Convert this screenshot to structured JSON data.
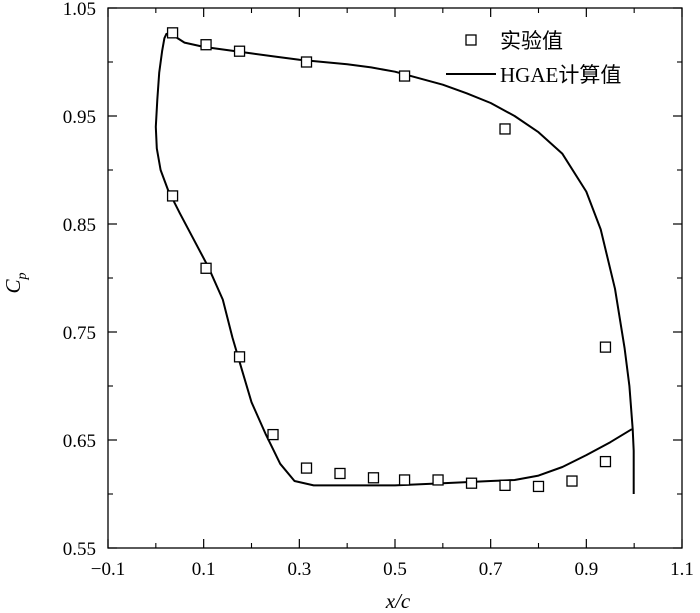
{
  "chart_data": {
    "type": "scatter",
    "xlabel": "x/c",
    "ylabel_main": "C",
    "ylabel_sub": "p",
    "xlim": [
      -0.1,
      1.1
    ],
    "ylim": [
      0.55,
      1.05
    ],
    "xticks": [
      -0.1,
      0.1,
      0.3,
      0.5,
      0.7,
      0.9,
      1.1
    ],
    "xtick_labels": [
      "−0.1",
      "0.1",
      "0.3",
      "0.5",
      "0.7",
      "0.9",
      "1.1"
    ],
    "yticks": [
      0.55,
      0.65,
      0.75,
      0.85,
      0.95,
      1.05
    ],
    "ytick_labels": [
      "0.55",
      "0.65",
      "0.75",
      "0.85",
      "0.95",
      "1.05"
    ],
    "grid": false,
    "legend_position": "top-right",
    "series": [
      {
        "name": "实验值",
        "style": "open-square-markers",
        "color": "#000000",
        "points": [
          [
            0.035,
            1.027
          ],
          [
            0.105,
            1.016
          ],
          [
            0.175,
            1.01
          ],
          [
            0.315,
            1.0
          ],
          [
            0.52,
            0.987
          ],
          [
            0.73,
            0.938
          ],
          [
            0.94,
            0.736
          ],
          [
            0.035,
            0.876
          ],
          [
            0.105,
            0.809
          ],
          [
            0.175,
            0.727
          ],
          [
            0.245,
            0.655
          ],
          [
            0.315,
            0.624
          ],
          [
            0.385,
            0.619
          ],
          [
            0.455,
            0.615
          ],
          [
            0.52,
            0.613
          ],
          [
            0.59,
            0.613
          ],
          [
            0.66,
            0.61
          ],
          [
            0.73,
            0.608
          ],
          [
            0.8,
            0.607
          ],
          [
            0.87,
            0.612
          ],
          [
            0.94,
            0.63
          ]
        ]
      },
      {
        "name": "HGAE计算值",
        "style": "solid-line",
        "color": "#000000",
        "points": [
          [
            0.999,
            0.6
          ],
          [
            0.999,
            0.64
          ],
          [
            0.997,
            0.66
          ],
          [
            0.99,
            0.7
          ],
          [
            0.98,
            0.735
          ],
          [
            0.96,
            0.79
          ],
          [
            0.93,
            0.845
          ],
          [
            0.9,
            0.88
          ],
          [
            0.85,
            0.915
          ],
          [
            0.8,
            0.935
          ],
          [
            0.75,
            0.95
          ],
          [
            0.7,
            0.962
          ],
          [
            0.65,
            0.971
          ],
          [
            0.6,
            0.979
          ],
          [
            0.55,
            0.985
          ],
          [
            0.5,
            0.991
          ],
          [
            0.45,
            0.995
          ],
          [
            0.4,
            0.998
          ],
          [
            0.35,
            1.0
          ],
          [
            0.3,
            1.002
          ],
          [
            0.25,
            1.005
          ],
          [
            0.2,
            1.008
          ],
          [
            0.15,
            1.011
          ],
          [
            0.1,
            1.014
          ],
          [
            0.06,
            1.018
          ],
          [
            0.035,
            1.025
          ],
          [
            0.022,
            1.026
          ],
          [
            0.018,
            1.022
          ],
          [
            0.013,
            1.01
          ],
          [
            0.007,
            0.99
          ],
          [
            0.003,
            0.965
          ],
          [
            0.0,
            0.94
          ],
          [
            0.002,
            0.92
          ],
          [
            0.01,
            0.9
          ],
          [
            0.025,
            0.882
          ],
          [
            0.05,
            0.86
          ],
          [
            0.08,
            0.835
          ],
          [
            0.11,
            0.81
          ],
          [
            0.14,
            0.78
          ],
          [
            0.16,
            0.745
          ],
          [
            0.18,
            0.715
          ],
          [
            0.2,
            0.685
          ],
          [
            0.23,
            0.655
          ],
          [
            0.26,
            0.628
          ],
          [
            0.29,
            0.612
          ],
          [
            0.33,
            0.608
          ],
          [
            0.4,
            0.608
          ],
          [
            0.5,
            0.608
          ],
          [
            0.6,
            0.61
          ],
          [
            0.7,
            0.612
          ],
          [
            0.75,
            0.613
          ],
          [
            0.8,
            0.617
          ],
          [
            0.85,
            0.625
          ],
          [
            0.9,
            0.636
          ],
          [
            0.95,
            0.648
          ],
          [
            0.995,
            0.66
          ]
        ]
      }
    ]
  }
}
